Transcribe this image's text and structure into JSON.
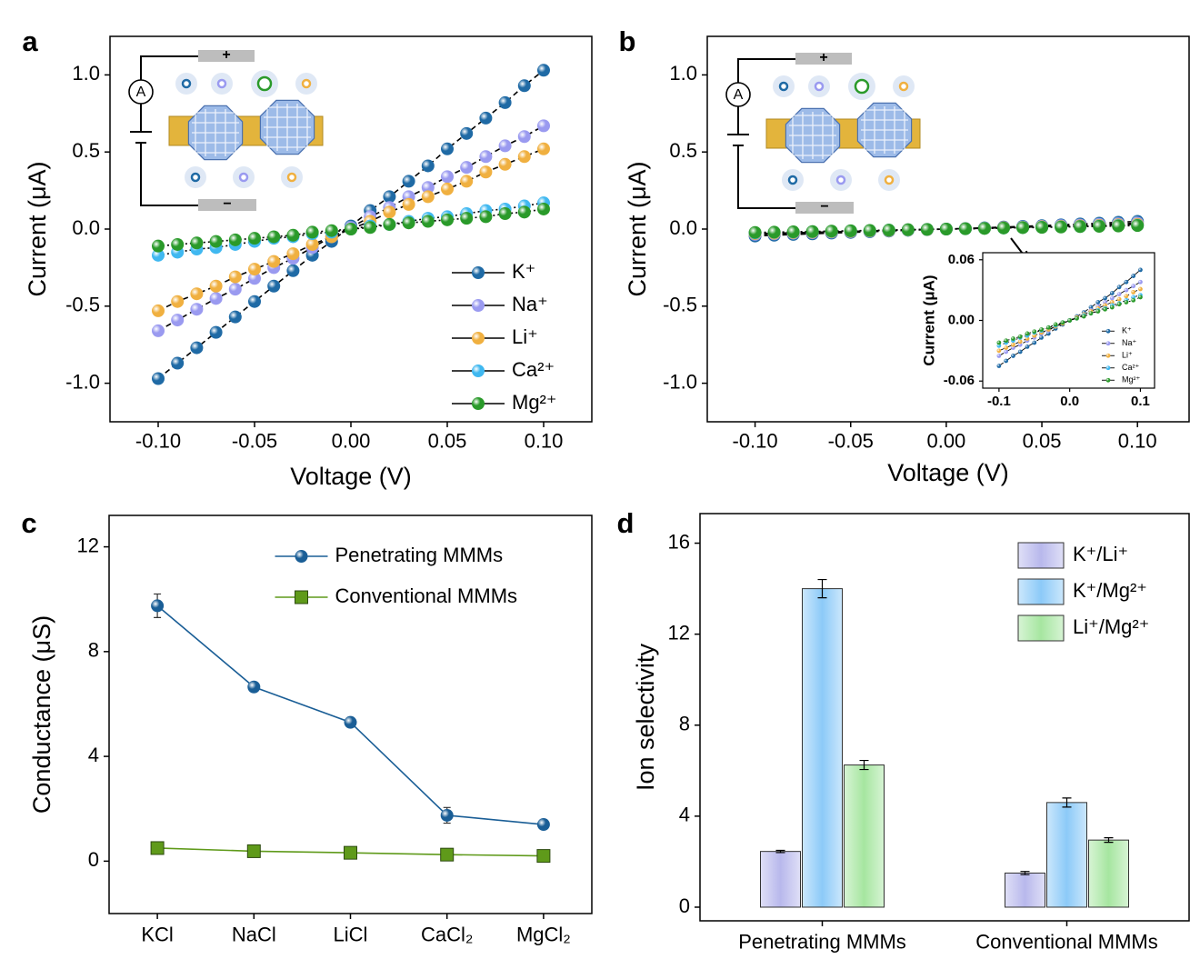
{
  "chart_data": [
    {
      "panel": "a",
      "type": "line",
      "xlabel": "Voltage (V)",
      "ylabel": "Current (μA)",
      "schematic": {
        "meter": "A",
        "plus": "+",
        "minus": "−"
      },
      "x": [
        -0.1,
        -0.09,
        -0.08,
        -0.07,
        -0.06,
        -0.05,
        -0.04,
        -0.03,
        -0.02,
        -0.01,
        0,
        0.01,
        0.02,
        0.03,
        0.04,
        0.05,
        0.06,
        0.07,
        0.08,
        0.09,
        0.1
      ],
      "xlim": [
        -0.125,
        0.125
      ],
      "ylim": [
        -1.25,
        1.25
      ],
      "xticks": [
        {
          "value": -0.1,
          "label": "-0.10"
        },
        {
          "value": -0.05,
          "label": "-0.05"
        },
        {
          "value": 0,
          "label": "0.00"
        },
        0.05,
        {
          "value": 0.1,
          "label": "0.10"
        }
      ],
      "yticks": [
        {
          "value": -1,
          "label": "-1.0"
        },
        -0.5,
        {
          "value": 0,
          "label": "0.0"
        },
        0.5,
        {
          "value": 1,
          "label": "1.0"
        }
      ],
      "legend": "lower right",
      "line_color": "#000000",
      "series": [
        {
          "name": "K⁺",
          "color": "#1f6aa5",
          "marker": "o",
          "linestyle": "--",
          "values": [
            -0.97,
            -0.87,
            -0.77,
            -0.67,
            -0.57,
            -0.47,
            -0.37,
            -0.27,
            -0.17,
            -0.08,
            0.02,
            0.12,
            0.21,
            0.31,
            0.41,
            0.52,
            0.62,
            0.72,
            0.82,
            0.93,
            1.03
          ]
        },
        {
          "name": "Na⁺",
          "color": "#9a9af0",
          "marker": "o",
          "linestyle": "--",
          "values": [
            -0.66,
            -0.59,
            -0.52,
            -0.45,
            -0.39,
            -0.32,
            -0.25,
            -0.19,
            -0.12,
            -0.05,
            0.01,
            0.08,
            0.14,
            0.21,
            0.27,
            0.34,
            0.4,
            0.47,
            0.54,
            0.6,
            0.67
          ]
        },
        {
          "name": "Li⁺",
          "color": "#f0b040",
          "marker": "o",
          "linestyle": "--",
          "values": [
            -0.53,
            -0.47,
            -0.42,
            -0.37,
            -0.31,
            -0.26,
            -0.21,
            -0.16,
            -0.1,
            -0.05,
            0,
            0.05,
            0.11,
            0.16,
            0.21,
            0.26,
            0.31,
            0.37,
            0.42,
            0.47,
            0.52
          ]
        },
        {
          "name": "Ca²⁺",
          "color": "#40b8f0",
          "marker": "o",
          "linestyle": ":",
          "values": [
            -0.17,
            -0.15,
            -0.13,
            -0.12,
            -0.1,
            -0.08,
            -0.06,
            -0.05,
            -0.03,
            -0.02,
            0,
            0.02,
            0.03,
            0.05,
            0.07,
            0.08,
            0.1,
            0.12,
            0.13,
            0.15,
            0.17
          ]
        },
        {
          "name": "Mg²⁺",
          "color": "#2a9a2a",
          "marker": "o",
          "linestyle": ":",
          "values": [
            -0.11,
            -0.1,
            -0.09,
            -0.08,
            -0.07,
            -0.06,
            -0.05,
            -0.04,
            -0.02,
            -0.01,
            0,
            0.01,
            0.03,
            0.04,
            0.05,
            0.06,
            0.07,
            0.08,
            0.1,
            0.11,
            0.13
          ]
        }
      ]
    },
    {
      "panel": "b",
      "type": "line",
      "xlabel": "Voltage (V)",
      "ylabel": "Current (μA)",
      "schematic": {
        "meter": "A",
        "plus": "+",
        "minus": "−"
      },
      "x": [
        -0.1,
        -0.09,
        -0.08,
        -0.07,
        -0.06,
        -0.05,
        -0.04,
        -0.03,
        -0.02,
        -0.01,
        0,
        0.01,
        0.02,
        0.03,
        0.04,
        0.05,
        0.06,
        0.07,
        0.08,
        0.09,
        0.1
      ],
      "xlim": [
        -0.125,
        0.127
      ],
      "ylim": [
        -1.25,
        1.25
      ],
      "xticks": [
        {
          "value": -0.1,
          "label": "-0.10"
        },
        {
          "value": -0.05,
          "label": "-0.05"
        },
        {
          "value": 0,
          "label": "0.00"
        },
        0.05,
        {
          "value": 0.1,
          "label": "0.10"
        }
      ],
      "yticks": [
        {
          "value": -1,
          "label": "-1.0"
        },
        -0.5,
        {
          "value": 0,
          "label": "0.0"
        },
        0.5,
        {
          "value": 1,
          "label": "1.0"
        }
      ],
      "line_color": "#000000",
      "series": [
        {
          "name": "K⁺",
          "color": "#1f6aa5",
          "marker": "o",
          "linestyle": "--",
          "values": [
            -0.045,
            -0.04,
            -0.035,
            -0.031,
            -0.026,
            -0.022,
            -0.017,
            -0.013,
            -0.008,
            -0.004,
            0,
            0.004,
            0.008,
            0.013,
            0.018,
            0.022,
            0.027,
            0.033,
            0.038,
            0.044,
            0.05
          ]
        },
        {
          "name": "Na⁺",
          "color": "#9a9af0",
          "marker": "o",
          "linestyle": "--",
          "values": [
            -0.035,
            -0.031,
            -0.027,
            -0.024,
            -0.02,
            -0.017,
            -0.013,
            -0.01,
            -0.006,
            -0.003,
            0,
            0.003,
            0.006,
            0.01,
            0.014,
            0.018,
            0.022,
            0.026,
            0.03,
            0.034,
            0.038
          ]
        },
        {
          "name": "Li⁺",
          "color": "#f0b040",
          "marker": "o",
          "linestyle": "--",
          "values": [
            -0.03,
            -0.027,
            -0.024,
            -0.021,
            -0.018,
            -0.015,
            -0.012,
            -0.009,
            -0.006,
            -0.003,
            0,
            0.003,
            0.006,
            0.009,
            0.012,
            0.015,
            0.018,
            0.021,
            0.024,
            0.028,
            0.031
          ]
        },
        {
          "name": "Ca²⁺",
          "color": "#40b8f0",
          "marker": "o",
          "linestyle": ":",
          "values": [
            -0.025,
            -0.022,
            -0.02,
            -0.017,
            -0.015,
            -0.012,
            -0.01,
            -0.007,
            -0.005,
            -0.002,
            0,
            0.002,
            0.005,
            0.007,
            0.01,
            0.012,
            0.015,
            0.017,
            0.02,
            0.023,
            0.025
          ]
        },
        {
          "name": "Mg²⁺",
          "color": "#2a9a2a",
          "marker": "o",
          "linestyle": ":",
          "values": [
            -0.022,
            -0.02,
            -0.018,
            -0.016,
            -0.013,
            -0.011,
            -0.009,
            -0.007,
            -0.004,
            -0.002,
            0,
            0.002,
            0.004,
            0.007,
            0.009,
            0.011,
            0.013,
            0.016,
            0.018,
            0.02,
            0.023
          ]
        }
      ],
      "inset": {
        "ylabel": "Current (μA)",
        "xlim": [
          -0.123,
          0.12
        ],
        "ylim": [
          -0.067,
          0.067
        ],
        "xticks": [
          -0.1,
          {
            "value": 0,
            "label": "0.0"
          },
          0.1
        ],
        "yticks": [
          -0.06,
          {
            "value": 0,
            "label": "0.00"
          },
          0.06
        ],
        "legend": "lower right"
      }
    },
    {
      "panel": "c",
      "type": "line",
      "ylabel": "Conductance (μS)",
      "categories": [
        "KCl",
        "NaCl",
        "LiCl",
        "CaCl₂",
        "MgCl₂"
      ],
      "ylim": [
        -2,
        13.2
      ],
      "yticks": [
        0,
        4,
        8,
        12
      ],
      "legend": "upper center",
      "series": [
        {
          "name": "Penetrating MMMs",
          "color": "#1a5e96",
          "marker": "o",
          "linestyle": "-",
          "values": [
            9.75,
            6.65,
            5.3,
            1.75,
            1.4
          ],
          "errors": [
            0.45,
            0.12,
            0.15,
            0.3,
            0.1
          ]
        },
        {
          "name": "Conventional MMMs",
          "color": "#5f9a1a",
          "marker": "s",
          "linestyle": "-",
          "values": [
            0.5,
            0.38,
            0.32,
            0.25,
            0.2
          ],
          "errors": [
            0.1,
            0.08,
            0.1,
            0.08,
            0.1
          ]
        }
      ]
    },
    {
      "panel": "d",
      "type": "bar",
      "ylabel": "Ion selectivity",
      "categories": [
        "Penetrating MMMs",
        "Conventional MMMs"
      ],
      "ylim": [
        -0.6,
        17.3
      ],
      "yticks": [
        0,
        4,
        8,
        12,
        16
      ],
      "legend": "upper right",
      "series": [
        {
          "name": "K⁺/Li⁺",
          "color": "#b8b8ec",
          "values": [
            2.45,
            1.5
          ],
          "errors": [
            0.05,
            0.07
          ]
        },
        {
          "name": "K⁺/Mg²⁺",
          "color": "#8ccaf8",
          "values": [
            14.0,
            4.6
          ],
          "errors": [
            0.4,
            0.2
          ]
        },
        {
          "name": "Li⁺/Mg²⁺",
          "color": "#a6e6a0",
          "values": [
            6.25,
            2.95
          ],
          "errors": [
            0.2,
            0.1
          ]
        }
      ]
    }
  ]
}
